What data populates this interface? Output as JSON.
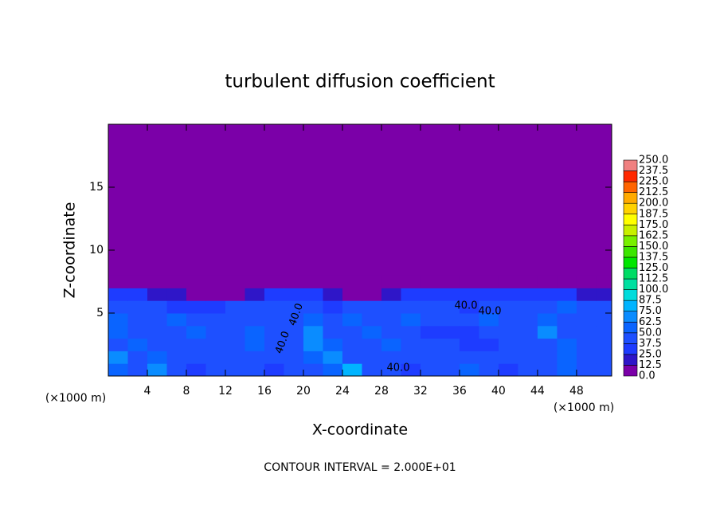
{
  "chart_data": {
    "type": "contour",
    "title": "turbulent diffusion coefficient",
    "x_label": "X-coordinate",
    "y_label": "Z-coordinate",
    "x_unit": "(×1000 m)",
    "footer": "CONTOUR INTERVAL = 2.000E+01",
    "annotations": [
      "40.0",
      "40.0",
      "40.0",
      "40.0",
      "40.0"
    ],
    "xlim": [
      0,
      51.6
    ],
    "ylim": [
      0,
      20
    ],
    "xticks": [
      4,
      8,
      12,
      16,
      20,
      24,
      28,
      32,
      36,
      40,
      44,
      48
    ],
    "yticks": [
      5,
      10,
      15
    ],
    "levels": [
      {
        "value": 0,
        "label": "0.0"
      },
      12.5,
      {
        "value": 25,
        "label": "25.0"
      },
      37.5,
      {
        "value": 50,
        "label": "50.0"
      },
      62.5,
      {
        "value": 75,
        "label": "75.0"
      },
      87.5,
      {
        "value": 100,
        "label": "100.0"
      },
      112.5,
      {
        "value": 125,
        "label": "125.0"
      },
      137.5,
      {
        "value": 150,
        "label": "150.0"
      },
      162.5,
      {
        "value": 175,
        "label": "175.0"
      },
      187.5,
      {
        "value": 200,
        "label": "200.0"
      },
      212.5,
      {
        "value": 225,
        "label": "225.0"
      },
      237.5,
      {
        "value": 250,
        "label": "250.0"
      }
    ],
    "colors": [
      "#7b00a8",
      "#2f16c8",
      "#1e3cff",
      "#1e50ff",
      "#0a64ff",
      "#0a8cff",
      "#00b4ff",
      "#00dcdc",
      "#00e0a0",
      "#00dc64",
      "#00e600",
      "#3ce600",
      "#78f000",
      "#c8f000",
      "#ffff00",
      "#ffd200",
      "#ffaa00",
      "#ff6400",
      "#ff2800",
      "#f08080"
    ],
    "x": [
      1,
      3,
      5,
      7,
      9,
      11,
      13,
      15,
      17,
      19,
      21,
      23,
      25,
      27,
      29,
      31,
      33,
      35,
      37,
      39,
      41,
      43,
      45,
      47,
      49,
      51
    ],
    "z": [
      0.5,
      1.5,
      2.5,
      3.5,
      4.5,
      5.5,
      6.5,
      7.5
    ],
    "values": [
      [
        60,
        45,
        70,
        40,
        35,
        40,
        45,
        40,
        35,
        45,
        40,
        60,
        75,
        45,
        40,
        35,
        40,
        45,
        50,
        40,
        35,
        45,
        40,
        60,
        45,
        40
      ],
      [
        70,
        40,
        55,
        40,
        40,
        45,
        40,
        45,
        40,
        40,
        60,
        70,
        45,
        40,
        45,
        40,
        40,
        45,
        40,
        45,
        40,
        40,
        45,
        55,
        40,
        45
      ],
      [
        45,
        55,
        40,
        40,
        45,
        40,
        45,
        60,
        45,
        40,
        65,
        50,
        40,
        45,
        50,
        40,
        40,
        40,
        35,
        35,
        40,
        45,
        40,
        60,
        45,
        40
      ],
      [
        50,
        45,
        40,
        45,
        60,
        40,
        40,
        55,
        45,
        40,
        70,
        40,
        45,
        50,
        40,
        40,
        35,
        35,
        35,
        45,
        40,
        45,
        70,
        40,
        40,
        45
      ],
      [
        55,
        40,
        45,
        60,
        40,
        45,
        40,
        40,
        40,
        45,
        60,
        45,
        55,
        40,
        45,
        60,
        45,
        40,
        40,
        50,
        45,
        40,
        60,
        45,
        40,
        45
      ],
      [
        40,
        45,
        40,
        35,
        30,
        25,
        40,
        45,
        40,
        40,
        45,
        30,
        45,
        40,
        45,
        40,
        45,
        40,
        35,
        40,
        40,
        40,
        45,
        50,
        40,
        40
      ],
      [
        25,
        30,
        20,
        15,
        0,
        0,
        10,
        20,
        25,
        30,
        30,
        20,
        0,
        0,
        20,
        25,
        30,
        30,
        25,
        25,
        30,
        30,
        25,
        30,
        20,
        20
      ],
      [
        10,
        10,
        0,
        0,
        0,
        0,
        0,
        0,
        5,
        10,
        10,
        0,
        0,
        0,
        0,
        0,
        0,
        0,
        0,
        5,
        10,
        10,
        0,
        0,
        0,
        10
      ]
    ]
  }
}
